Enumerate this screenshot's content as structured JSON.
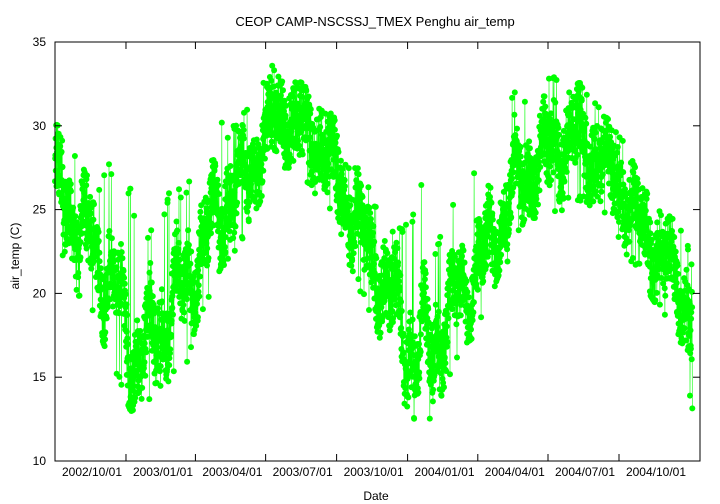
{
  "chart_data": {
    "type": "scatter",
    "title": "CEOP CAMP-NSCSSJ_TMEX Penghu  air_temp",
    "xlabel": "Date",
    "ylabel": "air_temp (C)",
    "xlim": [
      "2002-10-01",
      "2005-01-14"
    ],
    "ylim": [
      10,
      35
    ],
    "grid": false,
    "legend": "none",
    "x_ticks": [
      "2002/10/01",
      "2003/01/01",
      "2003/04/01",
      "2003/07/01",
      "2003/10/01",
      "2004/01/01",
      "2004/04/01",
      "2004/07/01",
      "2004/10/01"
    ],
    "y_ticks": [
      10,
      15,
      20,
      25,
      30,
      35
    ],
    "series": [
      {
        "color": "#00ff00",
        "marker": "circle",
        "x": [
          "2002-10-01",
          "2002-10-15",
          "2002-10-29",
          "2002-11-12",
          "2002-11-26",
          "2002-12-10",
          "2002-12-24",
          "2003-01-07",
          "2003-01-21",
          "2003-02-04",
          "2003-02-18",
          "2003-03-04",
          "2003-03-18",
          "2003-04-01",
          "2003-04-15",
          "2003-04-29",
          "2003-05-13",
          "2003-05-27",
          "2003-06-10",
          "2003-06-24",
          "2003-07-08",
          "2003-07-22",
          "2003-08-05",
          "2003-08-19",
          "2003-09-02",
          "2003-09-16",
          "2003-09-30",
          "2003-10-14",
          "2003-10-28",
          "2003-11-11",
          "2003-11-25",
          "2003-12-09",
          "2003-12-23",
          "2004-01-06",
          "2004-01-20",
          "2004-02-03",
          "2004-02-17",
          "2004-03-02",
          "2004-03-16",
          "2004-03-30",
          "2004-04-13",
          "2004-04-27",
          "2004-05-11",
          "2004-05-25",
          "2004-06-08",
          "2004-06-22",
          "2004-07-06",
          "2004-07-20",
          "2004-08-03",
          "2004-08-17",
          "2004-08-31",
          "2004-09-14",
          "2004-09-28",
          "2004-10-12",
          "2004-10-26",
          "2004-11-09",
          "2004-11-23",
          "2004-12-07",
          "2004-12-21",
          "2005-01-04"
        ],
        "mean": [
          26.0,
          25.6,
          24.2,
          23.5,
          22.0,
          21.0,
          19.2,
          17.0,
          16.3,
          17.1,
          18.6,
          19.4,
          20.0,
          21.9,
          23.0,
          24.4,
          25.6,
          26.2,
          27.4,
          28.5,
          29.6,
          30.6,
          30.4,
          29.6,
          29.2,
          28.6,
          27.2,
          25.6,
          24.1,
          22.7,
          21.2,
          19.8,
          18.4,
          17.0,
          15.8,
          17.2,
          18.0,
          19.2,
          20.6,
          21.4,
          22.4,
          24.1,
          25.6,
          26.4,
          27.4,
          27.7,
          28.6,
          28.8,
          29.2,
          29.0,
          28.4,
          27.6,
          27.0,
          25.5,
          24.4,
          23.3,
          22.1,
          21.5,
          20.2,
          18.5
        ],
        "min": [
          22.0,
          22.2,
          20.0,
          19.0,
          18.0,
          16.0,
          14.5,
          13.0,
          12.8,
          13.5,
          14.5,
          15.0,
          15.0,
          18.0,
          19.0,
          20.5,
          22.0,
          22.5,
          24.0,
          25.5,
          26.5,
          27.5,
          27.5,
          26.5,
          26.0,
          25.5,
          24.0,
          21.5,
          20.5,
          19.0,
          17.5,
          15.5,
          13.5,
          13.0,
          10.2,
          13.5,
          14.0,
          15.5,
          17.0,
          17.5,
          19.0,
          21.0,
          22.0,
          23.5,
          24.5,
          24.5,
          24.5,
          25.0,
          25.5,
          25.5,
          25.0,
          24.5,
          23.5,
          22.0,
          21.5,
          20.0,
          19.0,
          18.0,
          17.0,
          12.8
        ],
        "max": [
          30.8,
          28.5,
          28.2,
          27.0,
          26.0,
          28.0,
          24.0,
          26.6,
          21.5,
          24.5,
          24.8,
          27.0,
          25.5,
          28.5,
          29.0,
          31.2,
          29.5,
          30.5,
          31.5,
          32.5,
          33.8,
          33.0,
          33.2,
          32.5,
          31.5,
          31.0,
          30.5,
          28.0,
          27.5,
          26.5,
          25.0,
          24.0,
          24.0,
          24.5,
          26.8,
          22.5,
          24.0,
          25.5,
          26.5,
          27.5,
          28.0,
          31.5,
          32.0,
          32.3,
          31.5,
          32.5,
          33.2,
          32.6,
          32.5,
          32.6,
          31.5,
          30.5,
          30.0,
          28.7,
          27.0,
          27.0,
          25.5,
          24.5,
          24.2,
          22.0
        ]
      }
    ]
  }
}
